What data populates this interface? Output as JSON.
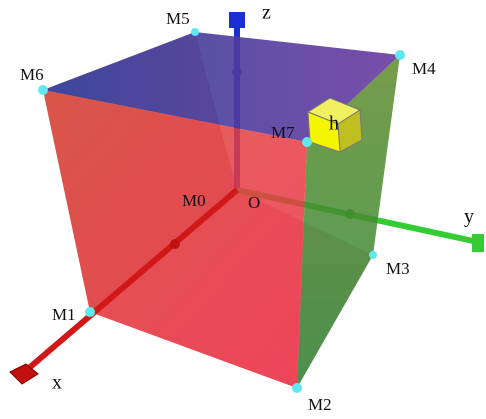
{
  "axes": {
    "x": "x",
    "y": "y",
    "z": "z",
    "origin": "O"
  },
  "vertices": [
    "M0",
    "M1",
    "M2",
    "M3",
    "M4",
    "M5",
    "M6",
    "M7"
  ],
  "marker": "h"
}
